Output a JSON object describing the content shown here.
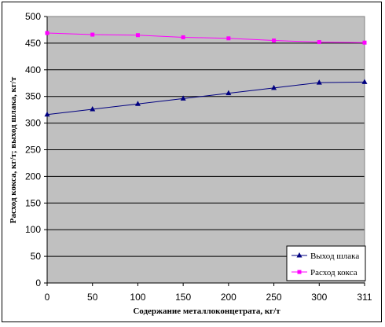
{
  "chart_data": {
    "type": "line",
    "title": "",
    "xlabel": "Содержание металлоконцетрата, кг/т",
    "ylabel": "Расход кокса, кг/т; выход шлака, кг/т",
    "categories": [
      "0",
      "50",
      "100",
      "150",
      "200",
      "250",
      "300",
      "311"
    ],
    "ylim": [
      0,
      500
    ],
    "yticks": [
      0,
      50,
      100,
      150,
      200,
      250,
      300,
      350,
      400,
      450,
      500
    ],
    "grid": true,
    "legend_position": "bottom-right",
    "plot_background": "#C0C0C0",
    "series": [
      {
        "name": "Выход шлака",
        "color": "#000080",
        "marker": "triangle",
        "values": [
          316,
          326,
          336,
          346,
          356,
          366,
          376,
          377
        ]
      },
      {
        "name": "Расход кокса",
        "color": "#FF00FF",
        "marker": "square",
        "values": [
          469,
          466,
          465,
          461,
          459,
          455,
          452,
          451
        ]
      }
    ]
  }
}
